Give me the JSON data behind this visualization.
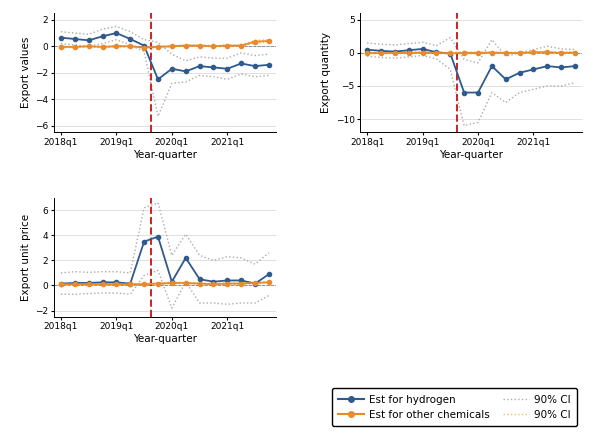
{
  "x_labels": [
    "2018q1",
    "2019q1",
    "2020q1",
    "2021q1"
  ],
  "x_ticks": [
    0,
    4,
    8,
    12
  ],
  "vline_x": 6.5,
  "num_points": 16,
  "panel1": {
    "ylabel": "Export values",
    "ylim": [
      -6.5,
      2.5
    ],
    "yticks": [
      -6,
      -4,
      -2,
      0,
      2
    ],
    "hydrogen_est": [
      0.65,
      0.55,
      0.45,
      0.75,
      1.0,
      0.55,
      0.05,
      -2.5,
      -1.7,
      -1.9,
      -1.5,
      -1.6,
      -1.7,
      -1.3,
      -1.5,
      -1.4
    ],
    "hydrogen_ci_lo": [
      0.2,
      0.1,
      0.0,
      0.2,
      0.5,
      0.1,
      -0.4,
      -5.3,
      -2.8,
      -2.7,
      -2.2,
      -2.3,
      -2.5,
      -2.1,
      -2.3,
      -2.2
    ],
    "hydrogen_ci_hi": [
      1.1,
      1.0,
      0.9,
      1.3,
      1.5,
      1.1,
      0.5,
      0.3,
      -0.6,
      -1.1,
      -0.8,
      -0.9,
      -0.9,
      -0.5,
      -0.7,
      -0.6
    ],
    "other_est": [
      -0.05,
      -0.05,
      0.0,
      -0.05,
      0.0,
      0.0,
      -0.1,
      -0.05,
      0.0,
      0.05,
      0.05,
      0.0,
      0.05,
      0.05,
      0.35,
      0.4
    ],
    "other_ci_lo": [
      -0.1,
      -0.1,
      -0.05,
      -0.1,
      -0.05,
      -0.05,
      -0.15,
      -0.1,
      -0.05,
      0.0,
      0.0,
      -0.05,
      0.0,
      0.0,
      0.25,
      0.3
    ],
    "other_ci_hi": [
      0.0,
      0.0,
      0.05,
      0.0,
      0.05,
      0.05,
      -0.05,
      0.0,
      0.05,
      0.1,
      0.1,
      0.05,
      0.1,
      0.1,
      0.45,
      0.5
    ]
  },
  "panel2": {
    "ylabel": "Export quantity",
    "ylim": [
      -12,
      6
    ],
    "yticks": [
      -10,
      -5,
      0,
      5
    ],
    "hydrogen_est": [
      0.5,
      0.3,
      0.2,
      0.4,
      0.6,
      0.1,
      -0.1,
      -6.0,
      -6.0,
      -2.0,
      -4.0,
      -3.0,
      -2.5,
      -2.0,
      -2.2,
      -2.0
    ],
    "hydrogen_ci_lo": [
      -0.5,
      -0.7,
      -0.8,
      -0.6,
      -0.4,
      -0.9,
      -2.5,
      -11.0,
      -10.5,
      -6.0,
      -7.5,
      -6.0,
      -5.5,
      -5.0,
      -5.0,
      -4.5
    ],
    "hydrogen_ci_hi": [
      1.5,
      1.3,
      1.2,
      1.4,
      1.6,
      1.1,
      2.3,
      -1.0,
      -1.5,
      2.0,
      -0.5,
      0.0,
      0.5,
      1.0,
      0.6,
      0.5
    ],
    "other_est": [
      0.0,
      -0.05,
      0.0,
      0.0,
      0.05,
      0.0,
      -0.05,
      0.0,
      0.0,
      0.05,
      0.0,
      0.0,
      0.1,
      0.1,
      0.0,
      0.05
    ],
    "other_ci_lo": [
      -0.1,
      -0.15,
      -0.1,
      -0.1,
      -0.05,
      -0.1,
      -0.15,
      -0.15,
      -0.15,
      0.0,
      -0.1,
      -0.1,
      0.0,
      0.0,
      -0.1,
      -0.05
    ],
    "other_ci_hi": [
      0.1,
      0.05,
      0.1,
      0.1,
      0.15,
      0.1,
      0.05,
      0.15,
      0.15,
      0.1,
      0.1,
      0.1,
      0.2,
      0.2,
      0.1,
      0.15
    ]
  },
  "panel3": {
    "ylabel": "Export unit price",
    "ylim": [
      -2.5,
      7
    ],
    "yticks": [
      -2,
      0,
      2,
      4,
      6
    ],
    "hydrogen_est": [
      0.15,
      0.2,
      0.2,
      0.25,
      0.25,
      0.15,
      3.5,
      3.9,
      0.3,
      2.2,
      0.5,
      0.3,
      0.4,
      0.4,
      0.15,
      0.9
    ],
    "hydrogen_ci_lo": [
      -0.7,
      -0.7,
      -0.65,
      -0.6,
      -0.6,
      -0.7,
      0.8,
      1.2,
      -1.8,
      0.3,
      -1.4,
      -1.4,
      -1.5,
      -1.4,
      -1.4,
      -0.8
    ],
    "hydrogen_ci_hi": [
      1.0,
      1.1,
      1.05,
      1.1,
      1.1,
      1.0,
      6.2,
      6.6,
      2.4,
      4.1,
      2.4,
      2.0,
      2.3,
      2.2,
      1.7,
      2.6
    ],
    "other_est": [
      0.1,
      0.1,
      0.1,
      0.1,
      0.1,
      0.1,
      0.1,
      0.15,
      0.2,
      0.2,
      0.15,
      0.1,
      0.15,
      0.15,
      0.2,
      0.25
    ],
    "other_ci_lo": [
      0.05,
      0.05,
      0.05,
      0.05,
      0.05,
      0.05,
      0.05,
      0.1,
      0.15,
      0.15,
      0.1,
      0.05,
      0.1,
      0.1,
      0.15,
      0.2
    ],
    "other_ci_hi": [
      0.15,
      0.15,
      0.15,
      0.15,
      0.15,
      0.15,
      0.15,
      0.2,
      0.25,
      0.25,
      0.2,
      0.15,
      0.2,
      0.2,
      0.25,
      0.3
    ]
  },
  "color_hydrogen": "#2E5A8E",
  "color_other": "#E8892B",
  "color_ci_hydrogen": "#AAAAAA",
  "color_ci_other": "#F0C060",
  "color_vline": "#CC2222",
  "marker_size": 3,
  "line_width": 1.3
}
